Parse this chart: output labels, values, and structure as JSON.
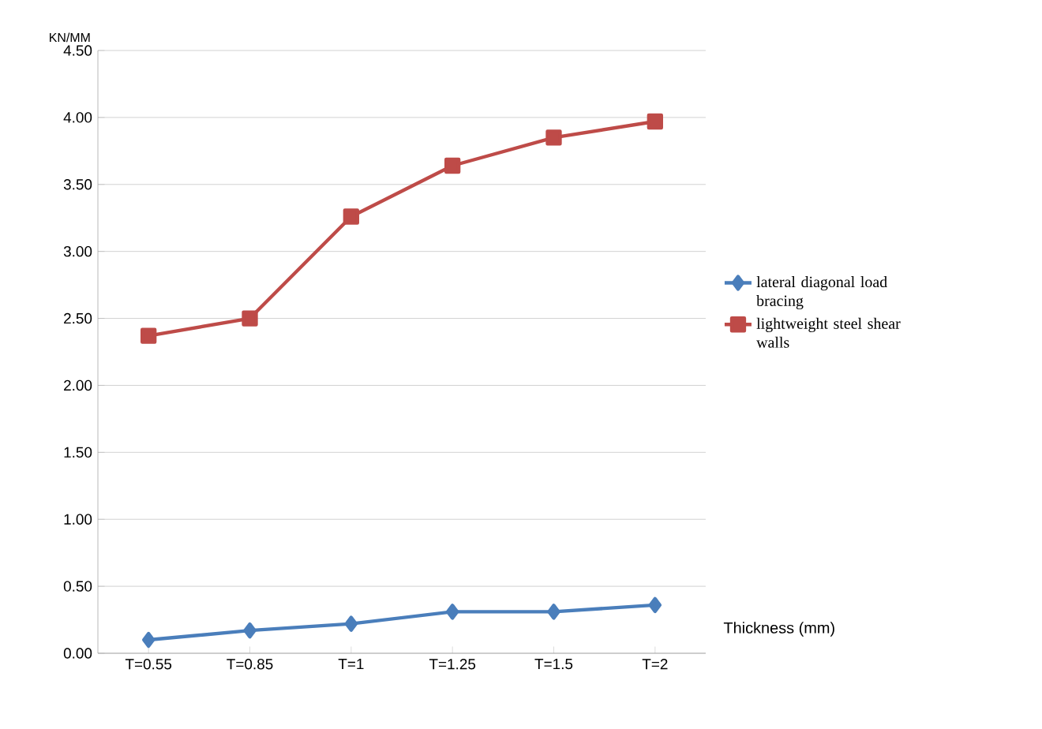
{
  "chart_data": {
    "type": "line",
    "xlabel": "Thickness (mm)",
    "ylabel": "KN/MM",
    "categories": [
      "T=0.55",
      "T=0.85",
      "T=1",
      "T=1.25",
      "T=1.5",
      "T=2"
    ],
    "series": [
      {
        "name": "lateral diagonal load bracing",
        "color": "#4a7ebb",
        "marker": "diamond",
        "values": [
          0.1,
          0.17,
          0.22,
          0.31,
          0.31,
          0.36
        ]
      },
      {
        "name": "lightweight steel shear walls",
        "color": "#be4b48",
        "marker": "square",
        "values": [
          2.37,
          2.5,
          3.26,
          3.64,
          3.85,
          3.97
        ]
      }
    ],
    "ylim": [
      0,
      4.5
    ],
    "yticks": [
      {
        "value": 0,
        "label": "0.00"
      },
      {
        "value": 0.5,
        "label": "0.50"
      },
      {
        "value": 1,
        "label": "1.00"
      },
      {
        "value": 1.5,
        "label": "1.50"
      },
      {
        "value": 2,
        "label": "2.00"
      },
      {
        "value": 2.5,
        "label": "2.50"
      },
      {
        "value": 3,
        "label": "3.00"
      },
      {
        "value": 3.5,
        "label": "3.50"
      },
      {
        "value": 4,
        "label": "4.00"
      },
      {
        "value": 4.5,
        "label": "4.50"
      }
    ],
    "grid": "y",
    "legend": "right",
    "line_style": "solid"
  }
}
